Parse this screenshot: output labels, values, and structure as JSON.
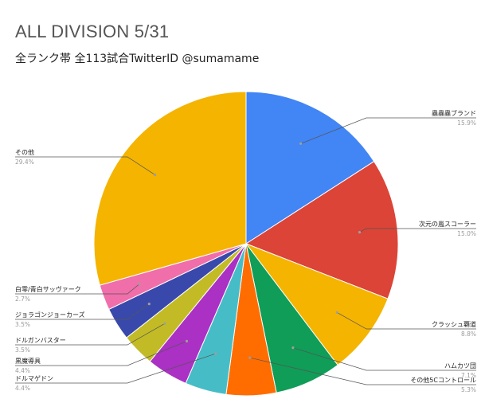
{
  "chart_data": {
    "type": "pie",
    "title": "ALL DIVISION 5/31",
    "subtitle": "全ランク帯 全113試合TwitterID @sumamame",
    "legend": "none",
    "slices": [
      {
        "name": "蟲蟲蟲ブランド",
        "value": 15.9,
        "label": "15.9%",
        "color": "#4285f4"
      },
      {
        "name": "次元の嵐スコーラー",
        "value": 15.0,
        "label": "15.0%",
        "color": "#db4437"
      },
      {
        "name": "クラッシュ覇道",
        "value": 8.8,
        "label": "8.8%",
        "color": "#f4b400"
      },
      {
        "name": "ハムカツ団",
        "value": 7.1,
        "label": "7.1%",
        "color": "#0f9d58"
      },
      {
        "name": "その他5Cコントロール",
        "value": 5.3,
        "label": "5.3%",
        "color": "#ff6d00"
      },
      {
        "name": "ドルマゲドン",
        "value": 4.4,
        "label": "4.4%",
        "color": "#46bdc6"
      },
      {
        "name": "黒魔導具",
        "value": 4.4,
        "label": "4.4%",
        "color": "#ab30c4"
      },
      {
        "name": "ドルガンバスター",
        "value": 3.5,
        "label": "3.5%",
        "color": "#c2bb26"
      },
      {
        "name": "ジョラゴンジョーカーズ",
        "value": 3.5,
        "label": "3.5%",
        "color": "#3949ab"
      },
      {
        "name": "白零/青白サッヴァーク",
        "value": 2.7,
        "label": "2.7%",
        "color": "#f06ea9"
      },
      {
        "name": "その他",
        "value": 29.4,
        "label": "29.4%",
        "color": "#f4b400"
      }
    ]
  }
}
